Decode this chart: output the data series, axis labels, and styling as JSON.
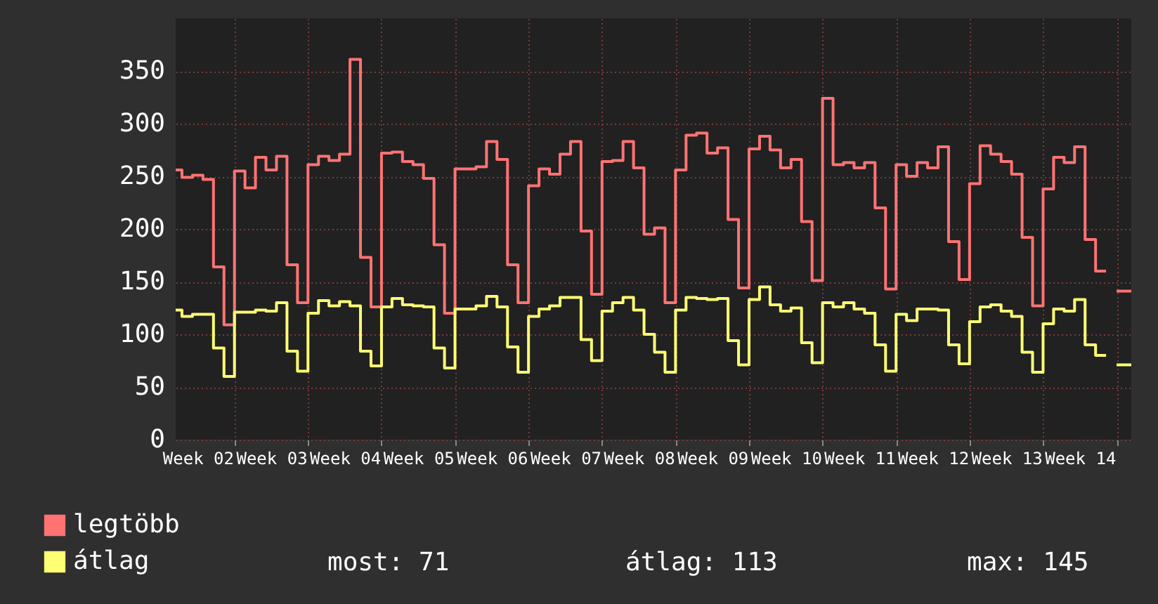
{
  "chart_data": {
    "type": "step",
    "categories": [
      null,
      null,
      "Week 02",
      null,
      null,
      null,
      null,
      null,
      null,
      "Week 03",
      null,
      null,
      null,
      null,
      null,
      null,
      "Week 04",
      null,
      null,
      null,
      null,
      null,
      null,
      "Week 05",
      null,
      null,
      null,
      null,
      null,
      null,
      "Week 06",
      null,
      null,
      null,
      null,
      null,
      null,
      "Week 07",
      null,
      null,
      null,
      null,
      null,
      null,
      "Week 08",
      null,
      null,
      null,
      null,
      null,
      null,
      "Week 09",
      null,
      null,
      null,
      null,
      null,
      null,
      "Week 10",
      null,
      null,
      null,
      null,
      null,
      null,
      "Week 11",
      null,
      null,
      null,
      null,
      null,
      null,
      "Week 12",
      null,
      null,
      null,
      null,
      null,
      null,
      "Week 13",
      null,
      null,
      null,
      null,
      null,
      null,
      "Week 14",
      null,
      null,
      null,
      null,
      null
    ],
    "series": [
      {
        "name": "legtöbb",
        "color": "#ff7373",
        "values": [
          256,
          249,
          251,
          247,
          164,
          109,
          255,
          239,
          268,
          256,
          269,
          166,
          130,
          261,
          269,
          265,
          271,
          361,
          173,
          126,
          272,
          273,
          264,
          261,
          248,
          185,
          120,
          257,
          257,
          259,
          283,
          266,
          166,
          130,
          241,
          257,
          252,
          271,
          283,
          198,
          138,
          264,
          265,
          283,
          258,
          195,
          201,
          130,
          256,
          289,
          291,
          272,
          277,
          209,
          144,
          276,
          288,
          275,
          258,
          266,
          207,
          151,
          324,
          261,
          263,
          258,
          263,
          220,
          143,
          261,
          250,
          263,
          258,
          278,
          188,
          152,
          243,
          279,
          271,
          264,
          252,
          192,
          127,
          238,
          268,
          263,
          278,
          190,
          160,
          null,
          141,
          141
        ]
      },
      {
        "name": "átlag",
        "color": "#ffff73",
        "values": [
          123,
          117,
          119,
          119,
          87,
          60,
          121,
          121,
          123,
          122,
          130,
          84,
          65,
          120,
          132,
          127,
          131,
          127,
          84,
          70,
          126,
          134,
          128,
          127,
          126,
          87,
          68,
          124,
          124,
          127,
          136,
          126,
          88,
          64,
          117,
          124,
          127,
          135,
          135,
          95,
          75,
          122,
          130,
          135,
          123,
          100,
          83,
          64,
          123,
          135,
          134,
          133,
          134,
          94,
          71,
          133,
          145,
          128,
          122,
          125,
          92,
          73,
          130,
          126,
          130,
          124,
          120,
          90,
          65,
          119,
          113,
          124,
          124,
          123,
          90,
          72,
          112,
          126,
          128,
          122,
          117,
          83,
          64,
          110,
          124,
          122,
          133,
          90,
          80,
          null,
          71,
          71
        ]
      }
    ],
    "ylim": [
      0,
      400
    ],
    "yticks": [
      0,
      50,
      100,
      150,
      200,
      250,
      300,
      350
    ],
    "grid": true,
    "legend": "bottom",
    "annotations": [
      "most: 71",
      "átlag: 113",
      "max: 145"
    ]
  }
}
